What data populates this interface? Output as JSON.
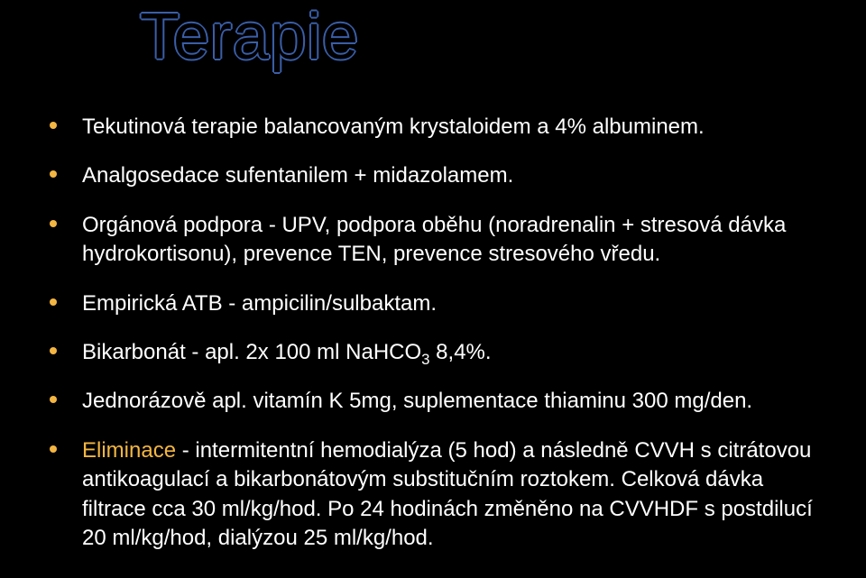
{
  "title": {
    "text": "Terapie",
    "color_fill": "#000000",
    "color_stroke": "#3a5ea8",
    "fontsize": 72
  },
  "colors": {
    "background": "#000000",
    "bullet": "#f4b642",
    "text": "#ffffff",
    "highlight": "#f4b642"
  },
  "bullets": [
    {
      "text": "Tekutinová terapie balancovaným krystaloidem a 4% albuminem.",
      "highlight": false
    },
    {
      "text": "Analgosedace sufentanilem + midazolamem.",
      "highlight": false
    },
    {
      "text": "Orgánová podpora - UPV, podpora oběhu (noradrenalin + stresová dávka hydrokortisonu), prevence TEN, prevence stresového vředu.",
      "highlight": false
    },
    {
      "text": "Empirická ATB - ampicilin/sulbaktam.",
      "highlight": false
    },
    {
      "text": "Bikarbonát - apl. 2x 100 ml NaHCO₃ 8,4%.",
      "highlight": false,
      "has_sub": true,
      "pre": "Bikarbonát - apl. 2x 100 ml NaHCO",
      "sub": "3",
      "post": " 8,4%."
    },
    {
      "text": "Jednorázově apl. vitamín K 5mg, suplementace thiaminu 300 mg/den.",
      "highlight": false
    },
    {
      "lead": "Eliminace",
      "rest": " - intermitentní hemodialýza (5 hod) a následně CVVH s citrátovou antikoagulací a bikarbonátovým substitučním roztokem. Celková dávka filtrace cca 30 ml/kg/hod. Po 24 hodinách změněno na CVVHDF s postdilucí 20 ml/kg/hod, dialýzou 25 ml/kg/hod.",
      "highlight": true
    }
  ],
  "body_fontsize": 24
}
